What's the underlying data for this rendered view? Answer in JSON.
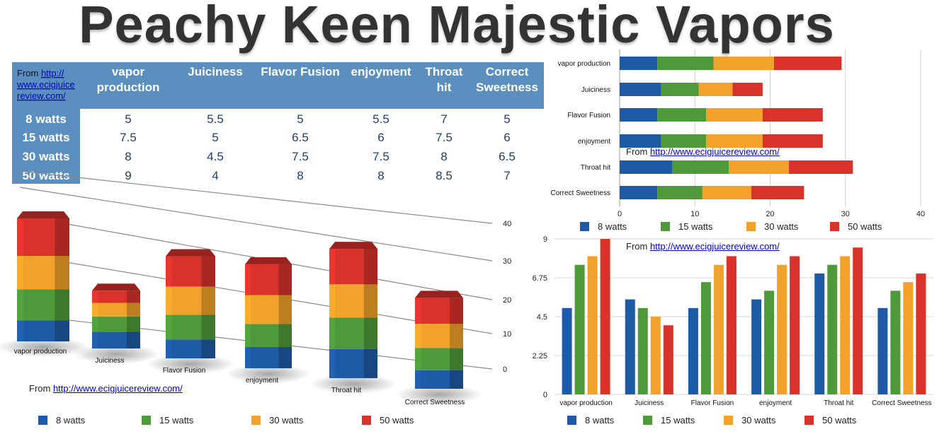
{
  "title": "Peachy Keen Majestic Vapors",
  "source": {
    "prefix": "From ",
    "url": "http://www.ecigjuicereview.com/"
  },
  "table": {
    "source_lines": [
      "From http://",
      "www.ecigjuice",
      "review.com/"
    ],
    "columns": [
      {
        "lines": [
          "vapor",
          "production"
        ]
      },
      {
        "lines": [
          "Juiciness"
        ]
      },
      {
        "lines": [
          "Flavor Fusion"
        ]
      },
      {
        "lines": [
          "enjoyment"
        ]
      },
      {
        "lines": [
          "Throat",
          "hit"
        ]
      },
      {
        "lines": [
          "Correct",
          "Sweetness"
        ]
      }
    ],
    "rows": [
      {
        "label": "8 watts",
        "values": [
          "5",
          "5.5",
          "5",
          "5.5",
          "7",
          "5"
        ]
      },
      {
        "label": "15 watts",
        "values": [
          "7.5",
          "5",
          "6.5",
          "6",
          "7.5",
          "6"
        ]
      },
      {
        "label": "30 watts",
        "values": [
          "8",
          "4.5",
          "7.5",
          "7.5",
          "8",
          "6.5"
        ]
      },
      {
        "label": "50 watts",
        "values": [
          "9",
          "4",
          "8",
          "8",
          "8.5",
          "7"
        ]
      }
    ]
  },
  "legend": [
    "8 watts",
    "15 watts",
    "30 watts",
    "50 watts"
  ],
  "colors": {
    "s8": "#1f5aa6",
    "s15": "#4e9a3a",
    "s30": "#f2a12a",
    "s50": "#d9322b",
    "table_header": "#5a8fbf",
    "title": "#333333"
  },
  "chart_data": [
    {
      "type": "bar",
      "stacked": true,
      "style": "3d-columns",
      "categories": [
        "vapor production",
        "Juiciness",
        "Flavor Fusion",
        "enjoyment",
        "Throat hit",
        "Correct Sweetness"
      ],
      "series": [
        {
          "name": "8 watts",
          "values": [
            5,
            5.5,
            5,
            5.5,
            7,
            5
          ]
        },
        {
          "name": "15 watts",
          "values": [
            7.5,
            5,
            6.5,
            6,
            7.5,
            6
          ]
        },
        {
          "name": "30 watts",
          "values": [
            8,
            4.5,
            7.5,
            7.5,
            8,
            6.5
          ]
        },
        {
          "name": "50 watts",
          "values": [
            9,
            4,
            8,
            8,
            8.5,
            7
          ]
        }
      ],
      "yticks": [
        "0",
        "10",
        "20",
        "30",
        "40"
      ],
      "ylim": [
        0,
        40
      ],
      "legend_position": "bottom"
    },
    {
      "type": "bar",
      "stacked": true,
      "orientation": "horizontal",
      "categories": [
        "vapor production",
        "Juiciness",
        "Flavor Fusion",
        "enjoyment",
        "Throat hit",
        "Correct Sweetness"
      ],
      "series": [
        {
          "name": "8 watts",
          "values": [
            5,
            5.5,
            5,
            5.5,
            7,
            5
          ]
        },
        {
          "name": "15 watts",
          "values": [
            7.5,
            5,
            6.5,
            6,
            7.5,
            6
          ]
        },
        {
          "name": "30 watts",
          "values": [
            8,
            4.5,
            7.5,
            7.5,
            8,
            6.5
          ]
        },
        {
          "name": "50 watts",
          "values": [
            9,
            4,
            8,
            8,
            8.5,
            7
          ]
        }
      ],
      "xticks": [
        "0",
        "10",
        "20",
        "30",
        "40"
      ],
      "xlim": [
        0,
        40
      ],
      "grid": true,
      "legend_position": "bottom"
    },
    {
      "type": "bar",
      "stacked": false,
      "categories": [
        "vapor production",
        "Juiciness",
        "Flavor Fusion",
        "enjoyment",
        "Throat hit",
        "Correct Sweetness"
      ],
      "series": [
        {
          "name": "8 watts",
          "values": [
            5,
            5.5,
            5,
            5.5,
            7,
            5
          ]
        },
        {
          "name": "15 watts",
          "values": [
            7.5,
            5,
            6.5,
            6,
            7.5,
            6
          ]
        },
        {
          "name": "30 watts",
          "values": [
            8,
            4.5,
            7.5,
            7.5,
            8,
            6.5
          ]
        },
        {
          "name": "50 watts",
          "values": [
            9,
            4,
            8,
            8,
            8.5,
            7
          ]
        }
      ],
      "yticks": [
        "0",
        "2.25",
        "4.5",
        "6.75",
        "9"
      ],
      "ylim": [
        0,
        9
      ],
      "grid": true,
      "legend_position": "bottom"
    }
  ]
}
